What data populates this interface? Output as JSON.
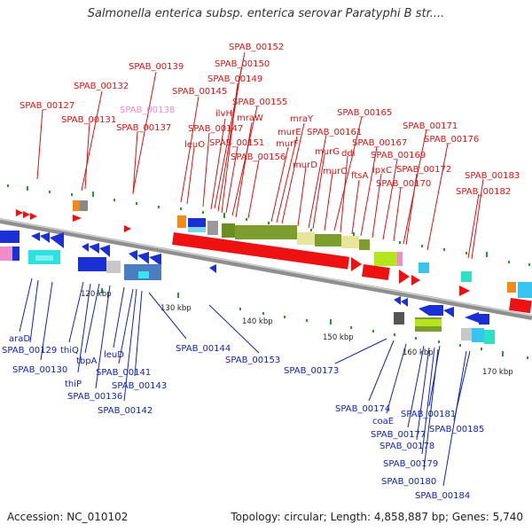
{
  "title": "Salmonella enterica subsp. enterica serovar Paratyphi B str....",
  "accession_label": "Accession: NC_010102",
  "summary_label": "Topology: circular; Length: 4,858,887 bp; Genes: 5,740",
  "colors": {
    "forward_label": "#dd1111",
    "reverse_label": "#1122bb",
    "highlight_label": "#f08cc8",
    "backbone": "#8f8f8f",
    "forward_gene": "#ee1111",
    "reverse_gene": "#1b2fd6"
  },
  "scale_labels": [
    "120 kbp",
    "130 kbp",
    "140 kbp",
    "150 kbp",
    "160 kbp",
    "170 kbp"
  ],
  "top_labels": [
    "SPAB_00152",
    "SPAB_00139",
    "SPAB_00150",
    "SPAB_00132",
    "SPAB_00149",
    "SPAB_00145",
    "SPAB_00155",
    "SPAB_00127",
    "SPAB_00138",
    "ilvH",
    "mraW",
    "SPAB_00131",
    "SPAB_00165",
    "mraY",
    "SPAB_00137",
    "SPAB_00147",
    "murE",
    "SPAB_00161",
    "SPAB_00171",
    "leuO",
    "SPAB_00151",
    "murF",
    "SPAB_00176",
    "murG",
    "ddl",
    "SPAB_00167",
    "SPAB_00169",
    "SPAB_00156",
    "murD",
    "murC",
    "lpxC",
    "SPAB_00172",
    "ftsA",
    "SPAB_00170",
    "SPAB_00183",
    "SPAB_00182"
  ],
  "bottom_labels": [
    "araD",
    "SPAB_00129",
    "thiQ",
    "SPAB_00130",
    "tbpA",
    "leuD",
    "thiP",
    "SPAB_00141",
    "SPAB_00143",
    "SPAB_00136",
    "SPAB_00142",
    "SPAB_00144",
    "SPAB_00153",
    "SPAB_00173",
    "SPAB_00174",
    "coaE",
    "SPAB_00181",
    "SPAB_00177",
    "SPAB_00185",
    "SPAB_00178",
    "SPAB_00179",
    "SPAB_00180",
    "SPAB_00184"
  ]
}
